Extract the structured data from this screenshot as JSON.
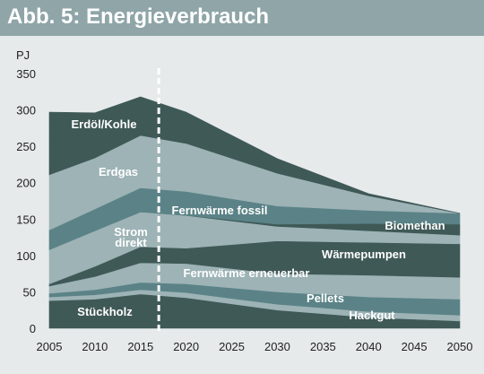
{
  "page": {
    "title": "Abb. 5: Energieverbrauch"
  },
  "colors": {
    "title_bar": "#8fa5a8",
    "background": "#e6eaeb",
    "dark": "#3f5957",
    "light": "#9db3b6",
    "mid": "#5b8387",
    "projection_line": "#ffffff"
  },
  "chart_data": {
    "type": "area",
    "stacked": true,
    "ylabel": "PJ",
    "xlabel": "",
    "x": [
      2005,
      2010,
      2015,
      2020,
      2030,
      2040,
      2050
    ],
    "xticks": [
      2005,
      2010,
      2015,
      2020,
      2025,
      2030,
      2035,
      2040,
      2045,
      2050
    ],
    "ylim": [
      0,
      350
    ],
    "yticks": [
      0,
      50,
      100,
      150,
      200,
      250,
      300,
      350
    ],
    "projection_start": 2017,
    "grid": false,
    "legend": "inline labels",
    "series": [
      {
        "name": "Stückholz",
        "color": "#3f5957",
        "values": [
          38,
          40,
          47,
          42,
          25,
          15,
          10
        ]
      },
      {
        "name": "Hackgut",
        "color": "#9db3b6",
        "values": [
          5,
          6,
          6,
          7,
          8,
          8,
          8
        ]
      },
      {
        "name": "Pellets",
        "color": "#5b8387",
        "values": [
          5,
          7,
          10,
          12,
          17,
          20,
          22
        ]
      },
      {
        "name": "Fernwärme erneuerbar",
        "color": "#9db3b6",
        "values": [
          10,
          18,
          27,
          28,
          25,
          30,
          30
        ]
      },
      {
        "name": "Wärmepumpen",
        "color": "#3f5957",
        "values": [
          3,
          14,
          22,
          21,
          45,
          45,
          46
        ]
      },
      {
        "name": "Strom direkt",
        "color": "#9db3b6",
        "values": [
          47,
          49,
          48,
          45,
          20,
          16,
          12
        ]
      },
      {
        "name": "Biomethan",
        "color": "#3f5957",
        "values": [
          0,
          0,
          0,
          0,
          3,
          10,
          15
        ]
      },
      {
        "name": "Fernwärme fossil",
        "color": "#5b8387",
        "values": [
          27,
          30,
          33,
          33,
          25,
          18,
          15
        ]
      },
      {
        "name": "Erdgas",
        "color": "#9db3b6",
        "values": [
          76,
          70,
          72,
          66,
          45,
          20,
          0
        ]
      },
      {
        "name": "Erdöl/Kohle",
        "color": "#3f5957",
        "values": [
          86,
          62,
          53,
          43,
          20,
          3,
          0
        ]
      }
    ]
  }
}
